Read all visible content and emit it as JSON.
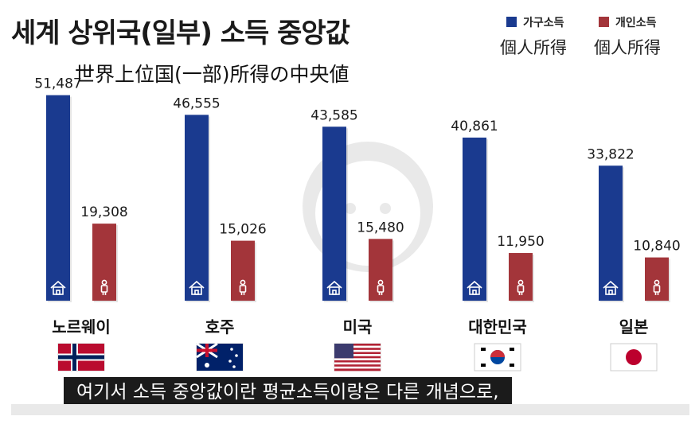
{
  "header": {
    "title": "세계 상위국(일부) 소득 중앙값",
    "subtitle": "世界上位国(一部)所得の中央値",
    "legend": [
      {
        "label": "가구소득",
        "sub": "個人所得",
        "color": "#1a3a8f"
      },
      {
        "label": "개인소득",
        "sub": "個人所得",
        "color": "#a3353a"
      }
    ]
  },
  "chart_data": {
    "type": "bar",
    "categories": [
      "노르웨이",
      "호주",
      "미국",
      "대한민국",
      "일본"
    ],
    "series": [
      {
        "name": "가구소득",
        "values": [
          51487,
          46555,
          43585,
          40861,
          33822
        ],
        "labels": [
          "51,487",
          "46,555",
          "43,585",
          "40,861",
          "33,822"
        ],
        "icon": "house-icon"
      },
      {
        "name": "개인소득",
        "values": [
          19308,
          15026,
          15480,
          11950,
          10840
        ],
        "labels": [
          "19,308",
          "15,026",
          "15,480",
          "11,950",
          "10,840"
        ],
        "icon": "person-icon"
      }
    ],
    "flags": [
      "norway-flag",
      "australia-flag",
      "usa-flag",
      "korea-flag",
      "japan-flag"
    ],
    "colors": {
      "household": "#1a3a8f",
      "individual": "#a3353a"
    },
    "title": "세계 상위국(일부) 소득 중앙값",
    "ylim": [
      0,
      55000
    ]
  },
  "caption": "여기서 소득 중앙값이란 평균소득이랑은 다른 개념으로,"
}
